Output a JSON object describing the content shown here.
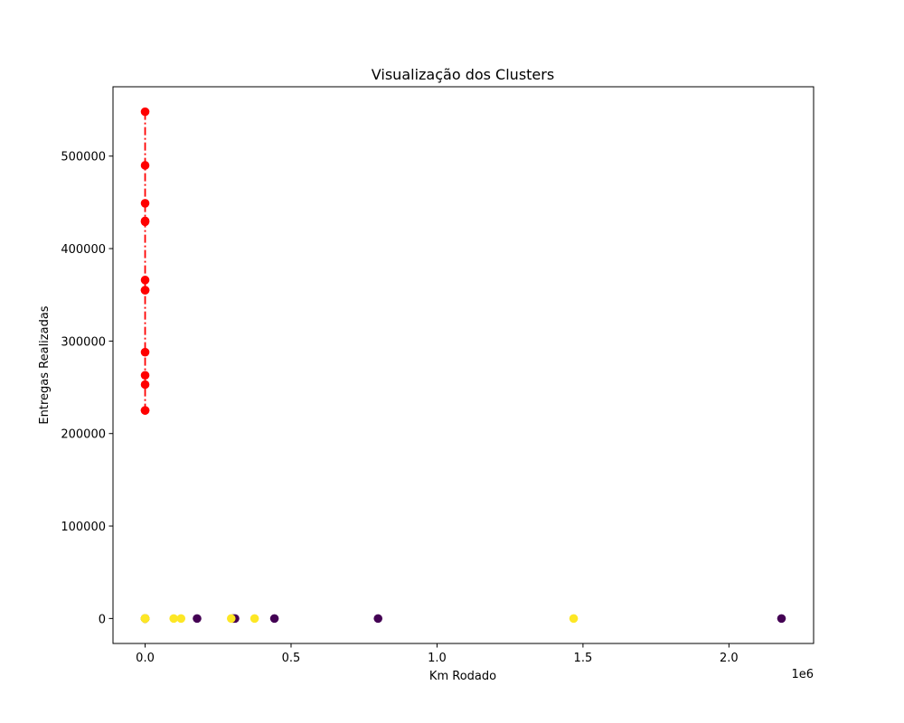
{
  "chart_data": {
    "type": "scatter",
    "title": "Visualização dos Clusters",
    "xlabel": "Km Rodado",
    "ylabel": "Entregas Realizadas",
    "x_offset_label": "1e6",
    "xlim": [
      -110000,
      2290000
    ],
    "ylim": [
      -27000,
      575000
    ],
    "x_ticks": [
      0,
      500000,
      1000000,
      1500000,
      2000000
    ],
    "x_tick_labels": [
      "0.0",
      "0.5",
      "1.0",
      "1.5",
      "2.0"
    ],
    "y_ticks": [
      0,
      100000,
      200000,
      300000,
      400000,
      500000
    ],
    "y_tick_labels": [
      "0",
      "100000",
      "200000",
      "300000",
      "400000",
      "500000"
    ],
    "grid": false,
    "legend": "none",
    "series": [
      {
        "color": "#440154",
        "marker": "circle",
        "x": [
          0,
          0,
          0,
          0,
          0,
          0,
          178000,
          302000,
          308000,
          443000,
          798000,
          2180000
        ],
        "y": [
          0,
          0,
          0,
          0,
          0,
          0,
          0,
          0,
          0,
          0,
          0,
          0
        ]
      },
      {
        "color": "#fde725",
        "marker": "circle",
        "x": [
          0,
          0,
          0,
          0,
          0,
          0,
          98000,
          123000,
          295000,
          375000,
          1468000
        ],
        "y": [
          0,
          0,
          0,
          0,
          0,
          0,
          0,
          0,
          0,
          0,
          0
        ]
      },
      {
        "color": "#ff0000",
        "marker": "circle",
        "line_style": "dashdot",
        "x": [
          0,
          0,
          0,
          0,
          0,
          0,
          0,
          0,
          0,
          0,
          0,
          0,
          0
        ],
        "y": [
          548000,
          490000,
          449000,
          430000,
          429000,
          366000,
          355000,
          355000,
          288000,
          263000,
          253000,
          225000,
          225000
        ]
      }
    ]
  }
}
